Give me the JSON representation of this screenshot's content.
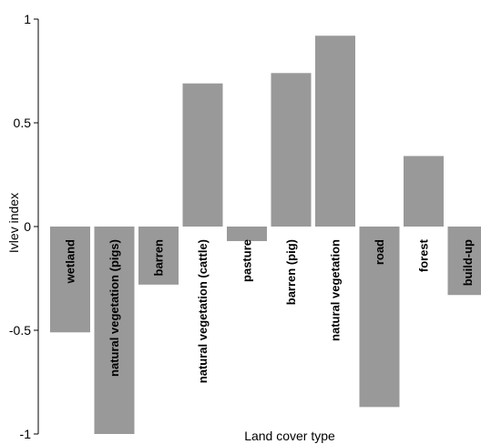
{
  "chart_data": {
    "type": "bar",
    "xlabel": "Land cover type",
    "ylabel": "Ivlev index",
    "ylim": [
      -1,
      1
    ],
    "yticks": [
      -1,
      -0.5,
      0,
      0.5,
      1
    ],
    "ytick_labels": [
      "-1",
      "-0.5",
      "0",
      "0.5",
      "1"
    ],
    "categories": [
      "wetland",
      "natural vegetation (pigs)",
      "barren",
      "natural vegetation (cattle)",
      "pasture",
      "barren (pig)",
      "natural vegetation",
      "road",
      "forest",
      "build-up"
    ],
    "values": [
      -0.51,
      -1.0,
      -0.28,
      0.69,
      -0.07,
      0.74,
      0.92,
      -0.87,
      0.34,
      -0.33
    ],
    "bar_color": "#999999",
    "grid": false,
    "legend": "none"
  }
}
